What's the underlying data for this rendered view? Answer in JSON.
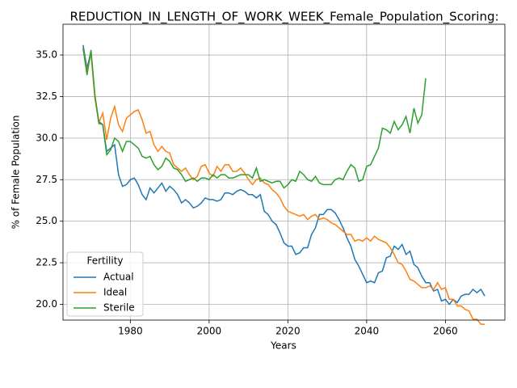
{
  "chart_data": {
    "type": "line",
    "title": "REDUCTION_IN_LENGTH_OF_WORK_WEEK_Female_Population_Scoring:",
    "xlabel": "Years",
    "ylabel": "% of Female Population",
    "legend_title": "Fertility",
    "legend": "lower left",
    "grid": true,
    "xlim": [
      1962.9,
      2075.1
    ],
    "xticks": [
      1980,
      2000,
      2020,
      2040,
      2060
    ],
    "ylim": [
      19.05,
      36.85
    ],
    "yticks": [
      {
        "value": 20,
        "label": "20.0"
      },
      {
        "value": 22.5,
        "label": "22.5"
      },
      {
        "value": 25,
        "label": "25.0"
      },
      {
        "value": 27.5,
        "label": "27.5"
      },
      {
        "value": 30,
        "label": "30.0"
      },
      {
        "value": 32.5,
        "label": "32.5"
      },
      {
        "value": 35,
        "label": "35.0"
      }
    ],
    "x": [
      1968,
      1969,
      1970,
      1971,
      1972,
      1973,
      1974,
      1975,
      1976,
      1977,
      1978,
      1979,
      1980,
      1981,
      1982,
      1983,
      1984,
      1985,
      1986,
      1987,
      1988,
      1989,
      1990,
      1991,
      1992,
      1993,
      1994,
      1995,
      1996,
      1997,
      1998,
      1999,
      2000,
      2001,
      2002,
      2003,
      2004,
      2005,
      2006,
      2007,
      2008,
      2009,
      2010,
      2011,
      2012,
      2013,
      2014,
      2015,
      2016,
      2017,
      2018,
      2019,
      2020,
      2021,
      2022,
      2023,
      2024,
      2025,
      2026,
      2027,
      2028,
      2029,
      2030,
      2031,
      2032,
      2033,
      2034,
      2035,
      2036,
      2037,
      2038,
      2039,
      2040,
      2041,
      2042,
      2043,
      2044,
      2045,
      2046,
      2047,
      2048,
      2049,
      2050,
      2051,
      2052,
      2053,
      2054,
      2055,
      2056,
      2057,
      2058,
      2059,
      2060,
      2061,
      2062,
      2063,
      2064,
      2065,
      2066,
      2067,
      2068,
      2069,
      2070
    ],
    "series": [
      {
        "name": "Actual",
        "color": "#1f77b4",
        "values": [
          35.6,
          34.2,
          35.2,
          32.5,
          31.0,
          30.8,
          29.2,
          29.4,
          29.6,
          27.8,
          27.1,
          27.2,
          27.5,
          27.6,
          27.2,
          26.6,
          26.3,
          27.0,
          26.7,
          27.0,
          27.3,
          26.8,
          27.1,
          26.9,
          26.6,
          26.1,
          26.3,
          26.1,
          25.8,
          25.9,
          26.1,
          26.4,
          26.3,
          26.3,
          26.2,
          26.3,
          26.7,
          26.7,
          26.6,
          26.8,
          26.9,
          26.8,
          26.6,
          26.6,
          26.4,
          26.6,
          25.6,
          25.4,
          25.0,
          24.8,
          24.3,
          23.7,
          23.5,
          23.5,
          23.0,
          23.1,
          23.4,
          23.4,
          24.2,
          24.6,
          25.4,
          25.4,
          25.7,
          25.7,
          25.5,
          25.1,
          24.6,
          24.0,
          23.5,
          22.7,
          22.3,
          21.8,
          21.3,
          21.4,
          21.3,
          21.9,
          22.0,
          22.8,
          22.9,
          23.5,
          23.3,
          23.6,
          23.0,
          23.2,
          22.4,
          22.2,
          21.7,
          21.3,
          21.3,
          20.8,
          20.9,
          20.2,
          20.3,
          20.0,
          20.3,
          20.1,
          20.5,
          20.6,
          20.6,
          20.9,
          20.7,
          20.9,
          20.5
        ]
      },
      {
        "name": "Ideal",
        "color": "#ff7f0e",
        "values": [
          35.4,
          34.0,
          35.1,
          32.4,
          30.9,
          31.5,
          29.9,
          31.2,
          31.9,
          30.8,
          30.4,
          31.2,
          31.4,
          31.6,
          31.7,
          31.1,
          30.3,
          30.4,
          29.6,
          29.2,
          29.5,
          29.2,
          29.1,
          28.4,
          28.2,
          28.0,
          28.2,
          27.8,
          27.5,
          27.7,
          28.3,
          28.4,
          27.9,
          27.7,
          28.3,
          28.0,
          28.4,
          28.4,
          28.0,
          28.0,
          28.2,
          27.9,
          27.5,
          27.2,
          27.5,
          27.6,
          27.3,
          27.2,
          26.9,
          26.7,
          26.4,
          25.9,
          25.6,
          25.5,
          25.4,
          25.3,
          25.4,
          25.1,
          25.3,
          25.4,
          25.1,
          25.2,
          25.1,
          24.9,
          24.8,
          24.6,
          24.4,
          24.2,
          24.2,
          23.8,
          23.9,
          23.8,
          24.0,
          23.8,
          24.1,
          23.9,
          23.8,
          23.7,
          23.4,
          23.0,
          22.5,
          22.4,
          22.0,
          21.5,
          21.4,
          21.2,
          21.0,
          21.0,
          21.1,
          20.9,
          21.3,
          20.9,
          21.0,
          20.3,
          20.3,
          19.9,
          19.9,
          19.7,
          19.6,
          19.1,
          19.1,
          18.8,
          18.8
        ]
      },
      {
        "name": "Sterile",
        "color": "#2ca02c",
        "values": [
          35.4,
          33.8,
          35.3,
          32.6,
          30.9,
          30.8,
          29.0,
          29.3,
          30.0,
          29.8,
          29.2,
          29.8,
          29.8,
          29.6,
          29.4,
          28.9,
          28.8,
          28.9,
          28.4,
          28.1,
          28.3,
          28.8,
          28.6,
          28.2,
          28.1,
          27.8,
          27.4,
          27.5,
          27.6,
          27.4,
          27.6,
          27.6,
          27.5,
          27.8,
          27.6,
          27.8,
          27.8,
          27.6,
          27.6,
          27.7,
          27.8,
          27.8,
          27.8,
          27.6,
          28.2,
          27.4,
          27.5,
          27.4,
          27.3,
          27.4,
          27.4,
          27.0,
          27.2,
          27.5,
          27.4,
          28.0,
          27.8,
          27.5,
          27.4,
          27.7,
          27.3,
          27.2,
          27.2,
          27.2,
          27.5,
          27.6,
          27.5,
          28.0,
          28.4,
          28.2,
          27.4,
          27.5,
          28.3,
          28.4,
          28.9,
          29.4,
          30.6,
          30.5,
          30.3,
          31.0,
          30.5,
          30.8,
          31.3,
          30.3,
          31.8,
          30.9,
          31.4,
          33.6,
          null,
          null,
          null,
          null,
          null,
          null,
          null,
          null,
          null,
          null,
          null,
          null,
          null,
          null,
          null
        ]
      }
    ]
  }
}
